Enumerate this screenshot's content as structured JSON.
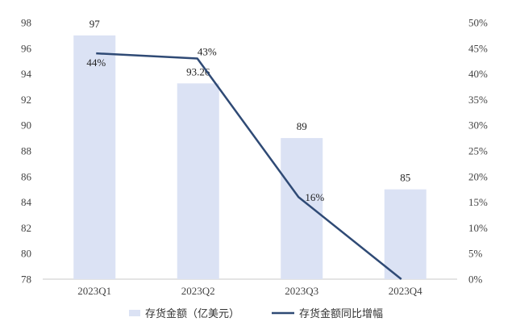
{
  "chart_data": {
    "type": "bar",
    "categories": [
      "2023Q1",
      "2023Q2",
      "2023Q3",
      "2023Q4"
    ],
    "series": [
      {
        "name": "存货金额（亿美元）",
        "kind": "bar",
        "axis": "left",
        "values": [
          97,
          93.26,
          89,
          85
        ],
        "labels": [
          "97",
          "93.26",
          "89",
          "85"
        ],
        "color": "#dbe2f4"
      },
      {
        "name": "存货金额同比增幅",
        "kind": "line",
        "axis": "right",
        "values": [
          0.44,
          0.43,
          0.16,
          0.0
        ],
        "labels": [
          "44%",
          "43%",
          "16%",
          ""
        ],
        "color": "#2f4a75"
      }
    ],
    "left_axis": {
      "ylim": [
        78,
        98
      ],
      "ticks": [
        "78",
        "80",
        "82",
        "84",
        "86",
        "88",
        "90",
        "92",
        "94",
        "96",
        "98"
      ]
    },
    "right_axis": {
      "ylim": [
        0,
        0.5
      ],
      "ticks": [
        "0%",
        "5%",
        "10%",
        "15%",
        "20%",
        "25%",
        "30%",
        "35%",
        "40%",
        "45%",
        "50%"
      ]
    },
    "grid": false,
    "legend": "bottom-center",
    "title": "",
    "xlabel": "",
    "ylabel": ""
  }
}
